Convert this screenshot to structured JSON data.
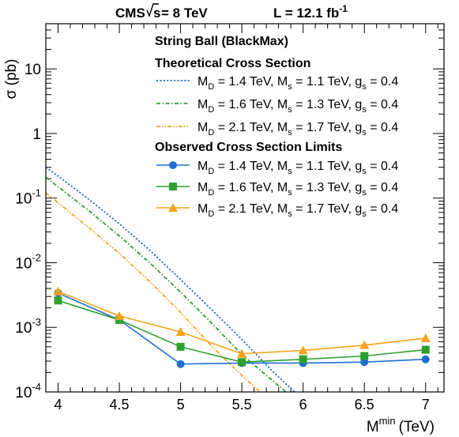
{
  "header": {
    "experiment": "CMS",
    "energy_sqrt": "s",
    "energy_value": " = 8 TeV",
    "lumi_prefix": "L = 12.1 fb",
    "lumi_sup": "-1"
  },
  "chart_data": {
    "type": "line",
    "xlabel_main": "M",
    "xlabel_sup": "min",
    "xlabel_unit": "(TeV)",
    "ylabel": "σ (pb)",
    "xlim": [
      3.9,
      7.15
    ],
    "ylim": [
      0.0001,
      50
    ],
    "y_log": true,
    "grid": false,
    "legend_placement": "top-right",
    "x_ticks": [
      4,
      4.5,
      5,
      5.5,
      6,
      6.5,
      7
    ],
    "x_tick_labels": [
      "4",
      "4.5",
      "5",
      "5.5",
      "6",
      "6.5",
      "7"
    ],
    "y_ticks": [
      {
        "value": 10,
        "base": "10",
        "sup": ""
      },
      {
        "value": 1,
        "base": "1",
        "sup": ""
      },
      {
        "value": 0.1,
        "base": "10",
        "sup": "-1"
      },
      {
        "value": 0.01,
        "base": "10",
        "sup": "-2"
      },
      {
        "value": 0.001,
        "base": "10",
        "sup": "-3"
      },
      {
        "value": 0.0001,
        "base": "10",
        "sup": "-4"
      }
    ],
    "legend": {
      "title": "String Ball (BlackMax)",
      "theory_header": "Theoretical Cross Section",
      "observed_header": "Observed Cross Section Limits"
    },
    "theory_series": [
      {
        "md": "1.4",
        "ms": "1.1",
        "gs": "0.4",
        "color": "#1f6fd0",
        "style": "dotted",
        "x": [
          3.9,
          4.0,
          4.25,
          4.5,
          4.75,
          5.0,
          5.25,
          5.5,
          5.75,
          5.93
        ],
        "y": [
          0.3,
          0.22,
          0.096,
          0.04,
          0.0155,
          0.0055,
          0.0019,
          0.00065,
          0.00021,
          0.0001
        ]
      },
      {
        "md": "1.6",
        "ms": "1.3",
        "gs": "0.4",
        "color": "#2ea02e",
        "style": "dashdot",
        "x": [
          3.9,
          4.0,
          4.25,
          4.5,
          4.75,
          5.0,
          5.25,
          5.5,
          5.75,
          5.86
        ],
        "y": [
          0.21,
          0.15,
          0.064,
          0.026,
          0.0099,
          0.0035,
          0.00118,
          0.00038,
          0.00015,
          0.0001
        ]
      },
      {
        "md": "2.1",
        "ms": "1.7",
        "gs": "0.4",
        "color": "#f5a31a",
        "style": "dashdotdot",
        "x": [
          3.9,
          4.0,
          4.25,
          4.5,
          4.75,
          5.0,
          5.25,
          5.5,
          5.65
        ],
        "y": [
          0.12,
          0.085,
          0.035,
          0.014,
          0.0051,
          0.0017,
          0.00052,
          0.00018,
          0.0001
        ]
      }
    ],
    "observed_series": [
      {
        "md": "1.4",
        "ms": "1.1",
        "gs": "0.4",
        "color": "#1f6fd0",
        "marker": "circle",
        "x": [
          4.0,
          4.5,
          5.0,
          5.5,
          6.0,
          6.5,
          7.0
        ],
        "y": [
          0.0034,
          0.0013,
          0.00027,
          0.00028,
          0.00028,
          0.00029,
          0.00032
        ]
      },
      {
        "md": "1.6",
        "ms": "1.3",
        "gs": "0.4",
        "color": "#2ea02e",
        "marker": "square",
        "x": [
          4.0,
          4.5,
          5.0,
          5.5,
          6.0,
          6.5,
          7.0
        ],
        "y": [
          0.0026,
          0.0013,
          0.0005,
          0.00029,
          0.00032,
          0.00036,
          0.00045
        ]
      },
      {
        "md": "2.1",
        "ms": "1.7",
        "gs": "0.4",
        "color": "#f5a31a",
        "marker": "triangle",
        "x": [
          4.0,
          4.5,
          5.0,
          5.5,
          6.0,
          6.5,
          7.0
        ],
        "y": [
          0.0036,
          0.0015,
          0.00085,
          0.00039,
          0.00044,
          0.00053,
          0.00068
        ]
      }
    ]
  }
}
